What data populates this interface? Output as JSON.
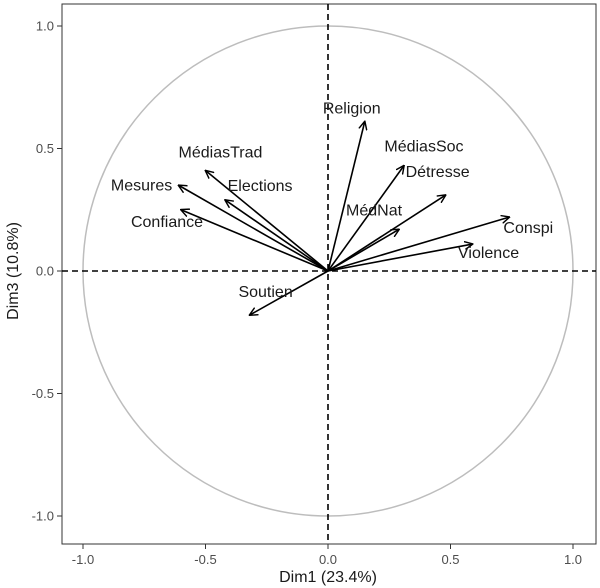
{
  "chart_data": {
    "type": "scatter",
    "subtype": "correlation-circle",
    "xlabel": "Dim1 (23.4%)",
    "ylabel": "Dim3 (10.8%)",
    "xlim": [
      -1.0,
      1.0
    ],
    "ylim": [
      -1.0,
      1.0
    ],
    "xticks": [
      -1.0,
      -0.5,
      0.0,
      0.5,
      1.0
    ],
    "yticks": [
      -1.0,
      -0.5,
      0.0,
      0.5,
      1.0
    ],
    "xtick_labels": [
      "-1.0",
      "-0.5",
      "0.0",
      "0.5",
      "1.0"
    ],
    "ytick_labels": [
      "-1.0",
      "-0.5",
      "0.0",
      "0.5",
      "1.0"
    ],
    "grid": false,
    "circle_radius": 1.0,
    "colors": {
      "arrow": "#000000",
      "circle": "#bdbdbd",
      "frame": "#333333",
      "refline": "#000000"
    },
    "variables": [
      {
        "name": "Religion",
        "x": 0.15,
        "y": 0.61
      },
      {
        "name": "MédiasSoc",
        "x": 0.31,
        "y": 0.43
      },
      {
        "name": "Détresse",
        "x": 0.48,
        "y": 0.31
      },
      {
        "name": "MédNat",
        "x": 0.29,
        "y": 0.17
      },
      {
        "name": "Conspi",
        "x": 0.74,
        "y": 0.22
      },
      {
        "name": "Violence",
        "x": 0.59,
        "y": 0.11
      },
      {
        "name": "MédiasTrad",
        "x": -0.5,
        "y": 0.41
      },
      {
        "name": "Mesures",
        "x": -0.61,
        "y": 0.35
      },
      {
        "name": "Elections",
        "x": -0.42,
        "y": 0.29
      },
      {
        "name": "Confiance",
        "x": -0.6,
        "y": 0.25
      },
      {
        "name": "Soutien",
        "x": -0.32,
        "y": -0.18
      }
    ]
  }
}
